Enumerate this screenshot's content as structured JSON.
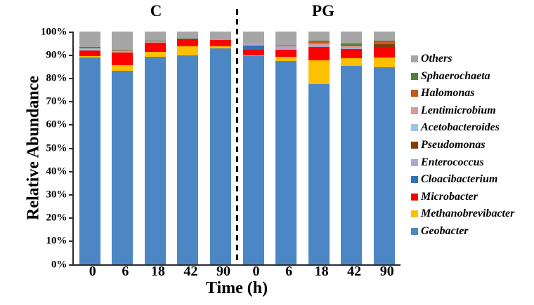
{
  "chart_data": {
    "type": "bar",
    "stacked": true,
    "ylabel": "Relative Abundance",
    "xlabel": "Time (h)",
    "ylim": [
      0,
      100
    ],
    "ytick_labels": [
      "0%",
      "10%",
      "20%",
      "30%",
      "40%",
      "50%",
      "60%",
      "70%",
      "80%",
      "90%",
      "100%"
    ],
    "grid": false,
    "legend_position": "right",
    "group_labels": [
      "C",
      "PG"
    ],
    "categories": [
      "0",
      "6",
      "18",
      "42",
      "90",
      "0",
      "6",
      "18",
      "42",
      "90"
    ],
    "separator_after_category_index": 4,
    "series": [
      {
        "name": "Geobacter",
        "color": "#4d86c5",
        "values": [
          88.9,
          83.2,
          89.3,
          89.7,
          92.9,
          89.4,
          87.4,
          77.3,
          85.3,
          84.5
        ]
      },
      {
        "name": "Methanobrevibacter",
        "color": "#ffc000",
        "values": [
          0.5,
          2.4,
          2.1,
          3.9,
          0.9,
          0.4,
          1.9,
          10.5,
          3.2,
          4.4
        ]
      },
      {
        "name": "Microbacter",
        "color": "#fe0000",
        "values": [
          2.6,
          5.4,
          3.9,
          3.2,
          2.5,
          2.4,
          2.8,
          5.7,
          4.0,
          4.5
        ]
      },
      {
        "name": "Cloacibacterium",
        "color": "#2e74b6",
        "values": [
          0,
          0,
          0,
          0,
          0,
          1.9,
          0,
          0,
          0,
          0
        ]
      },
      {
        "name": "Enterococcus",
        "color": "#b3a6cd",
        "values": [
          0,
          0,
          0,
          0,
          0,
          0.5,
          1.5,
          0.9,
          0.8,
          0
        ]
      },
      {
        "name": "Pseudomonas",
        "color": "#843c0c",
        "values": [
          0,
          0,
          0,
          0,
          0,
          0,
          0,
          0,
          0,
          1.4
        ]
      },
      {
        "name": "Acetobacteroides",
        "color": "#9dc3e6",
        "values": [
          0.9,
          0,
          0,
          0,
          0,
          0,
          0,
          0,
          0,
          0
        ]
      },
      {
        "name": "Lentimicrobium",
        "color": "#d99795",
        "values": [
          0,
          0.9,
          0.5,
          0,
          0,
          0.4,
          0,
          0.5,
          0.5,
          0.4
        ]
      },
      {
        "name": "Halomonas",
        "color": "#c55a11",
        "values": [
          0,
          0,
          0,
          0,
          0,
          0,
          0.5,
          1.0,
          0.5,
          0.4
        ]
      },
      {
        "name": "Sphaerochaeta",
        "color": "#548235",
        "values": [
          0.5,
          0.3,
          0.4,
          0.3,
          0,
          0,
          0,
          0.2,
          0.5,
          0.6
        ]
      },
      {
        "name": "Others",
        "color": "#a6a6a6",
        "values": [
          6.6,
          7.8,
          3.8,
          2.9,
          3.7,
          5.0,
          5.9,
          3.9,
          5.2,
          3.8
        ]
      }
    ]
  }
}
